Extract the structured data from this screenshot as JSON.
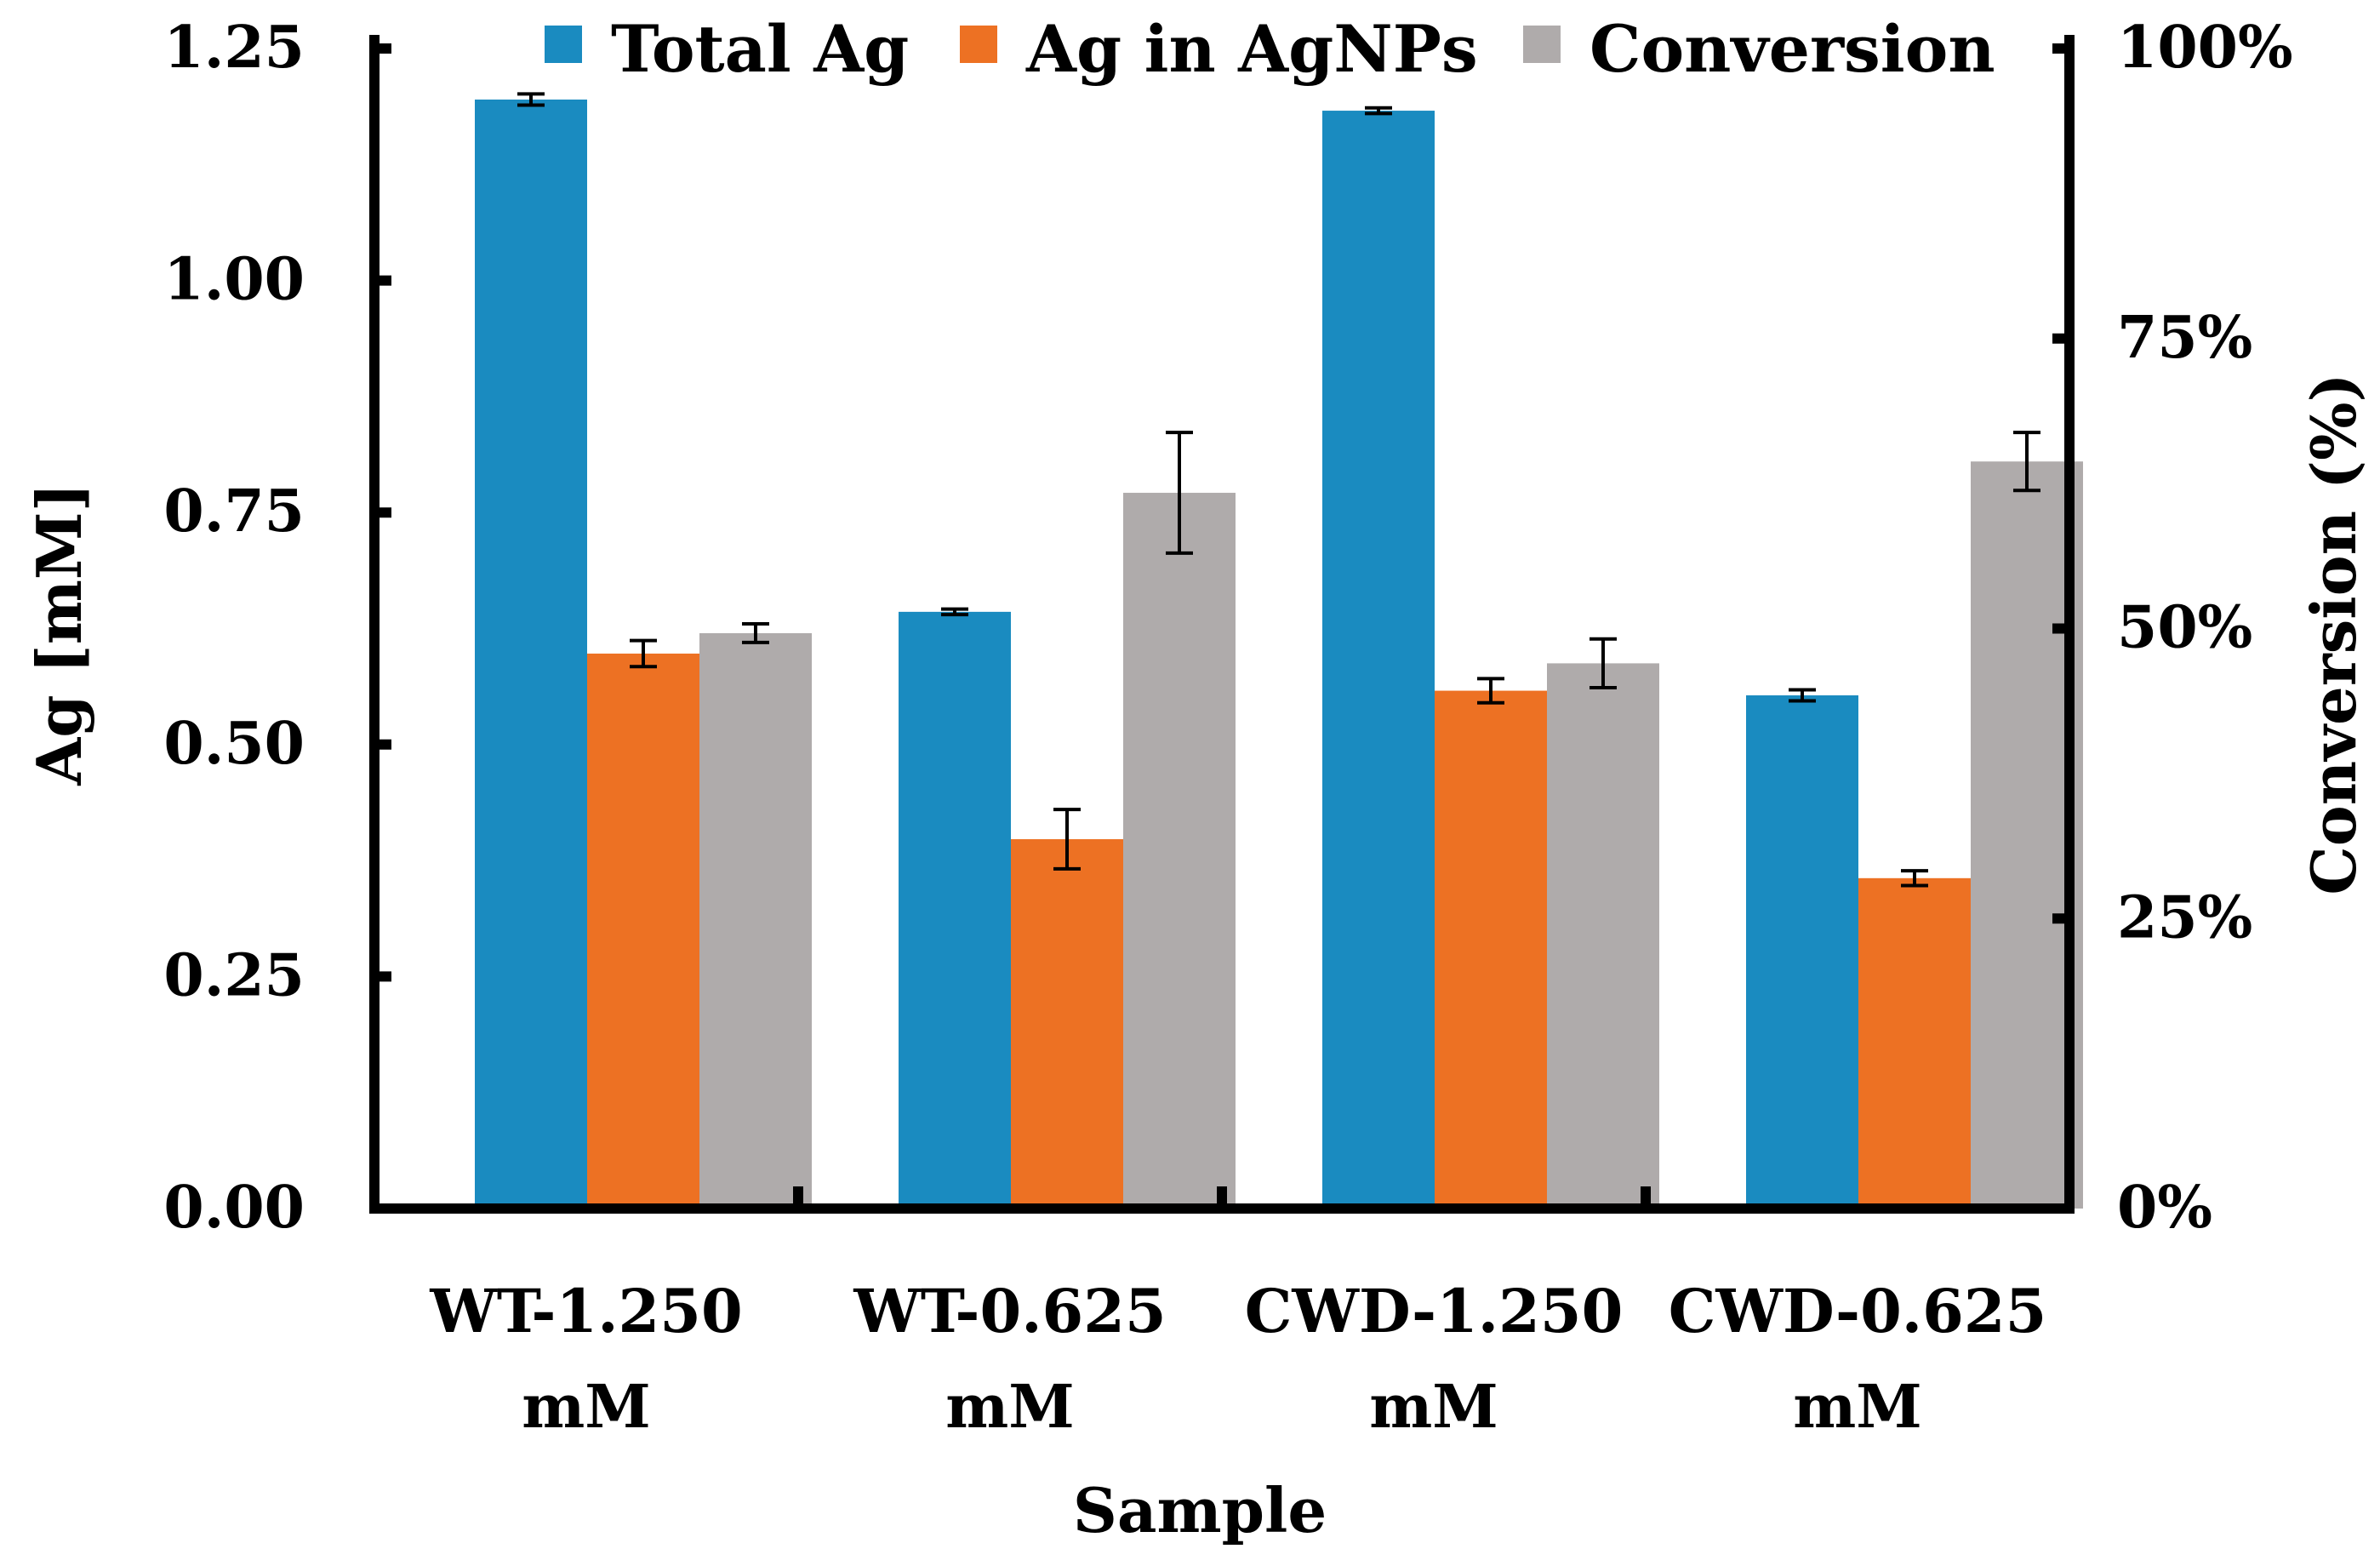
{
  "chart_data": {
    "type": "bar",
    "xlabel": "Sample",
    "ylabel": "Ag [mM]",
    "y2label": "Conversion (%)",
    "categories": [
      [
        "WT-1.250",
        "mM"
      ],
      [
        "WT-0.625",
        "mM"
      ],
      [
        "CWD-1.250",
        "mM"
      ],
      [
        "CWD-0.625",
        "mM"
      ]
    ],
    "ylim": [
      0,
      1.25
    ],
    "y_ticks": [
      "0.00",
      "0.25",
      "0.50",
      "0.75",
      "1.00",
      "1.25"
    ],
    "y2lim": [
      0,
      100
    ],
    "y2_ticks": [
      "0%",
      "25%",
      "50%",
      "75%",
      "100%"
    ],
    "legend_position": "top",
    "series": [
      {
        "name": "Total Ag",
        "axis": "left",
        "color": "#1a8bc0",
        "values": [
          1.195,
          0.643,
          1.183,
          0.553
        ],
        "errors": [
          0.006,
          0.003,
          0.003,
          0.006
        ]
      },
      {
        "name": "Ag in AgNPs",
        "axis": "left",
        "color": "#ed7123",
        "values": [
          0.598,
          0.398,
          0.558,
          0.356
        ],
        "errors": [
          0.014,
          0.032,
          0.013,
          0.008
        ]
      },
      {
        "name": "Conversion",
        "axis": "right",
        "color": "#afabab",
        "values": [
          49.6,
          61.7,
          47.0,
          64.4
        ],
        "errors": [
          0.8,
          5.2,
          2.1,
          2.5
        ]
      }
    ]
  }
}
